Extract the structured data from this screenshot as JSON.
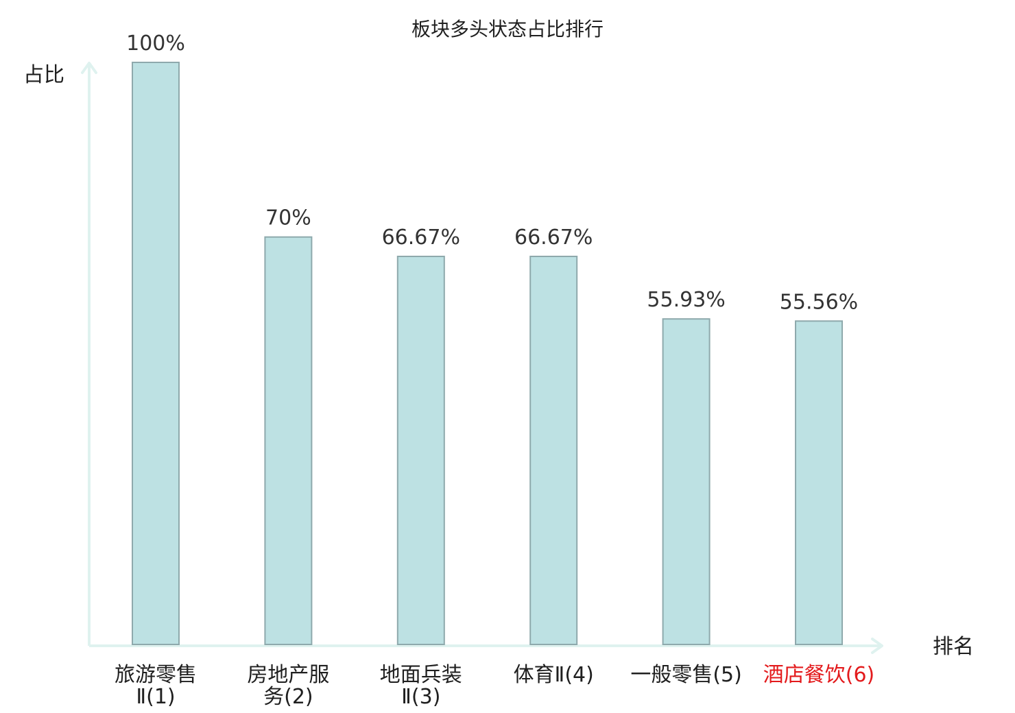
{
  "chart_data": {
    "type": "bar",
    "title": "板块多头状态占比排行",
    "xlabel": "排名",
    "ylabel": "占比",
    "ylim": [
      0,
      100
    ],
    "categories": [
      [
        "旅游零售",
        "Ⅱ(1)"
      ],
      [
        "房地产服",
        "务(2)"
      ],
      [
        "地面兵装",
        "Ⅱ(3)"
      ],
      [
        "体育Ⅱ(4)"
      ],
      [
        "一般零售(5)"
      ],
      [
        "酒店餐饮(6)"
      ]
    ],
    "values": [
      100,
      70,
      66.67,
      66.67,
      55.93,
      55.56
    ],
    "data_labels": [
      "100%",
      "70%",
      "66.67%",
      "66.67%",
      "55.93%",
      "55.56%"
    ],
    "highlight_index": 5,
    "grid": false,
    "colors": {
      "bar_fill": "#bde1e3",
      "bar_stroke": "#8ea9ac",
      "axis": "#dff2ef",
      "text": "#1f1f1f",
      "value_text": "#333333",
      "highlight_text": "#e31a1c"
    }
  }
}
